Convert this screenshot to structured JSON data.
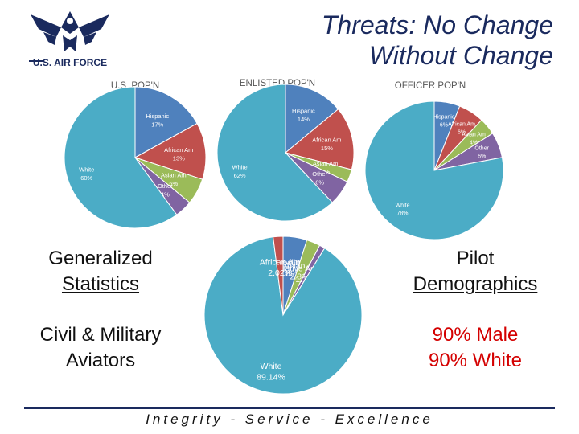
{
  "header": {
    "logo_text": "U.S. AIR FORCE",
    "title_line1": "Threats: No Change",
    "title_line2": "Without Change"
  },
  "left_panel": {
    "heading_line1": "Generalized",
    "heading_line2": "Statistics",
    "sub_line1": "Civil & Military",
    "sub_line2": "Aviators"
  },
  "right_panel": {
    "heading_line1": "Pilot",
    "heading_line2": "Demographics",
    "stat1": "90% Male",
    "stat2": "90% White"
  },
  "footer": {
    "motto": "Integrity - Service - Excellence"
  },
  "colors": {
    "white": "#4bacc6",
    "hispanic": "#4f81bd",
    "african_am": "#c0504d",
    "asian_am": "#9bbb59",
    "other": "#8064a2",
    "decline": "#4f81bd",
    "native_am": "#8064a2",
    "title": "#1a2a5e",
    "accent_red": "#d40000"
  },
  "chart_data": [
    {
      "type": "pie",
      "title": "U.S. POP'N",
      "slices": [
        {
          "label": "Hispanic",
          "value": 17,
          "value_label": "17%"
        },
        {
          "label": "African Am",
          "value": 13,
          "value_label": "13%"
        },
        {
          "label": "Asian Am",
          "value": 6,
          "value_label": "6%"
        },
        {
          "label": "Other",
          "value": 4,
          "value_label": "4%"
        },
        {
          "label": "White",
          "value": 60,
          "value_label": "60%"
        }
      ]
    },
    {
      "type": "pie",
      "title": "ENLISTED POP'N",
      "slices": [
        {
          "label": "Hispanic",
          "value": 14,
          "value_label": "14%"
        },
        {
          "label": "African Am",
          "value": 15,
          "value_label": "15%"
        },
        {
          "label": "Asian Am",
          "value": 3,
          "value_label": "3%"
        },
        {
          "label": "Other",
          "value": 6,
          "value_label": "6%"
        },
        {
          "label": "White",
          "value": 62,
          "value_label": "62%"
        }
      ]
    },
    {
      "type": "pie",
      "title": "OFFICER POP'N",
      "slices": [
        {
          "label": "Hispanic",
          "value": 6,
          "value_label": "6%"
        },
        {
          "label": "African Am",
          "value": 6,
          "value_label": "6%"
        },
        {
          "label": "Asian Am",
          "value": 4,
          "value_label": "4%"
        },
        {
          "label": "Other",
          "value": 6,
          "value_label": "6%"
        },
        {
          "label": "White",
          "value": 78,
          "value_label": "78%"
        }
      ]
    },
    {
      "type": "pie",
      "title": "",
      "slices": [
        {
          "label": "Decline",
          "value": 4.89,
          "value_label": "4.89%"
        },
        {
          "label": "Asian Am",
          "value": 2.81,
          "value_label": "2.81%"
        },
        {
          "label": "Native Am & PI",
          "value": 1.14,
          "value_label": "1.14%"
        },
        {
          "label": "White",
          "value": 89.14,
          "value_label": "89.14%"
        },
        {
          "label": "African Am",
          "value": 2.02,
          "value_label": "2.02%"
        }
      ]
    }
  ]
}
